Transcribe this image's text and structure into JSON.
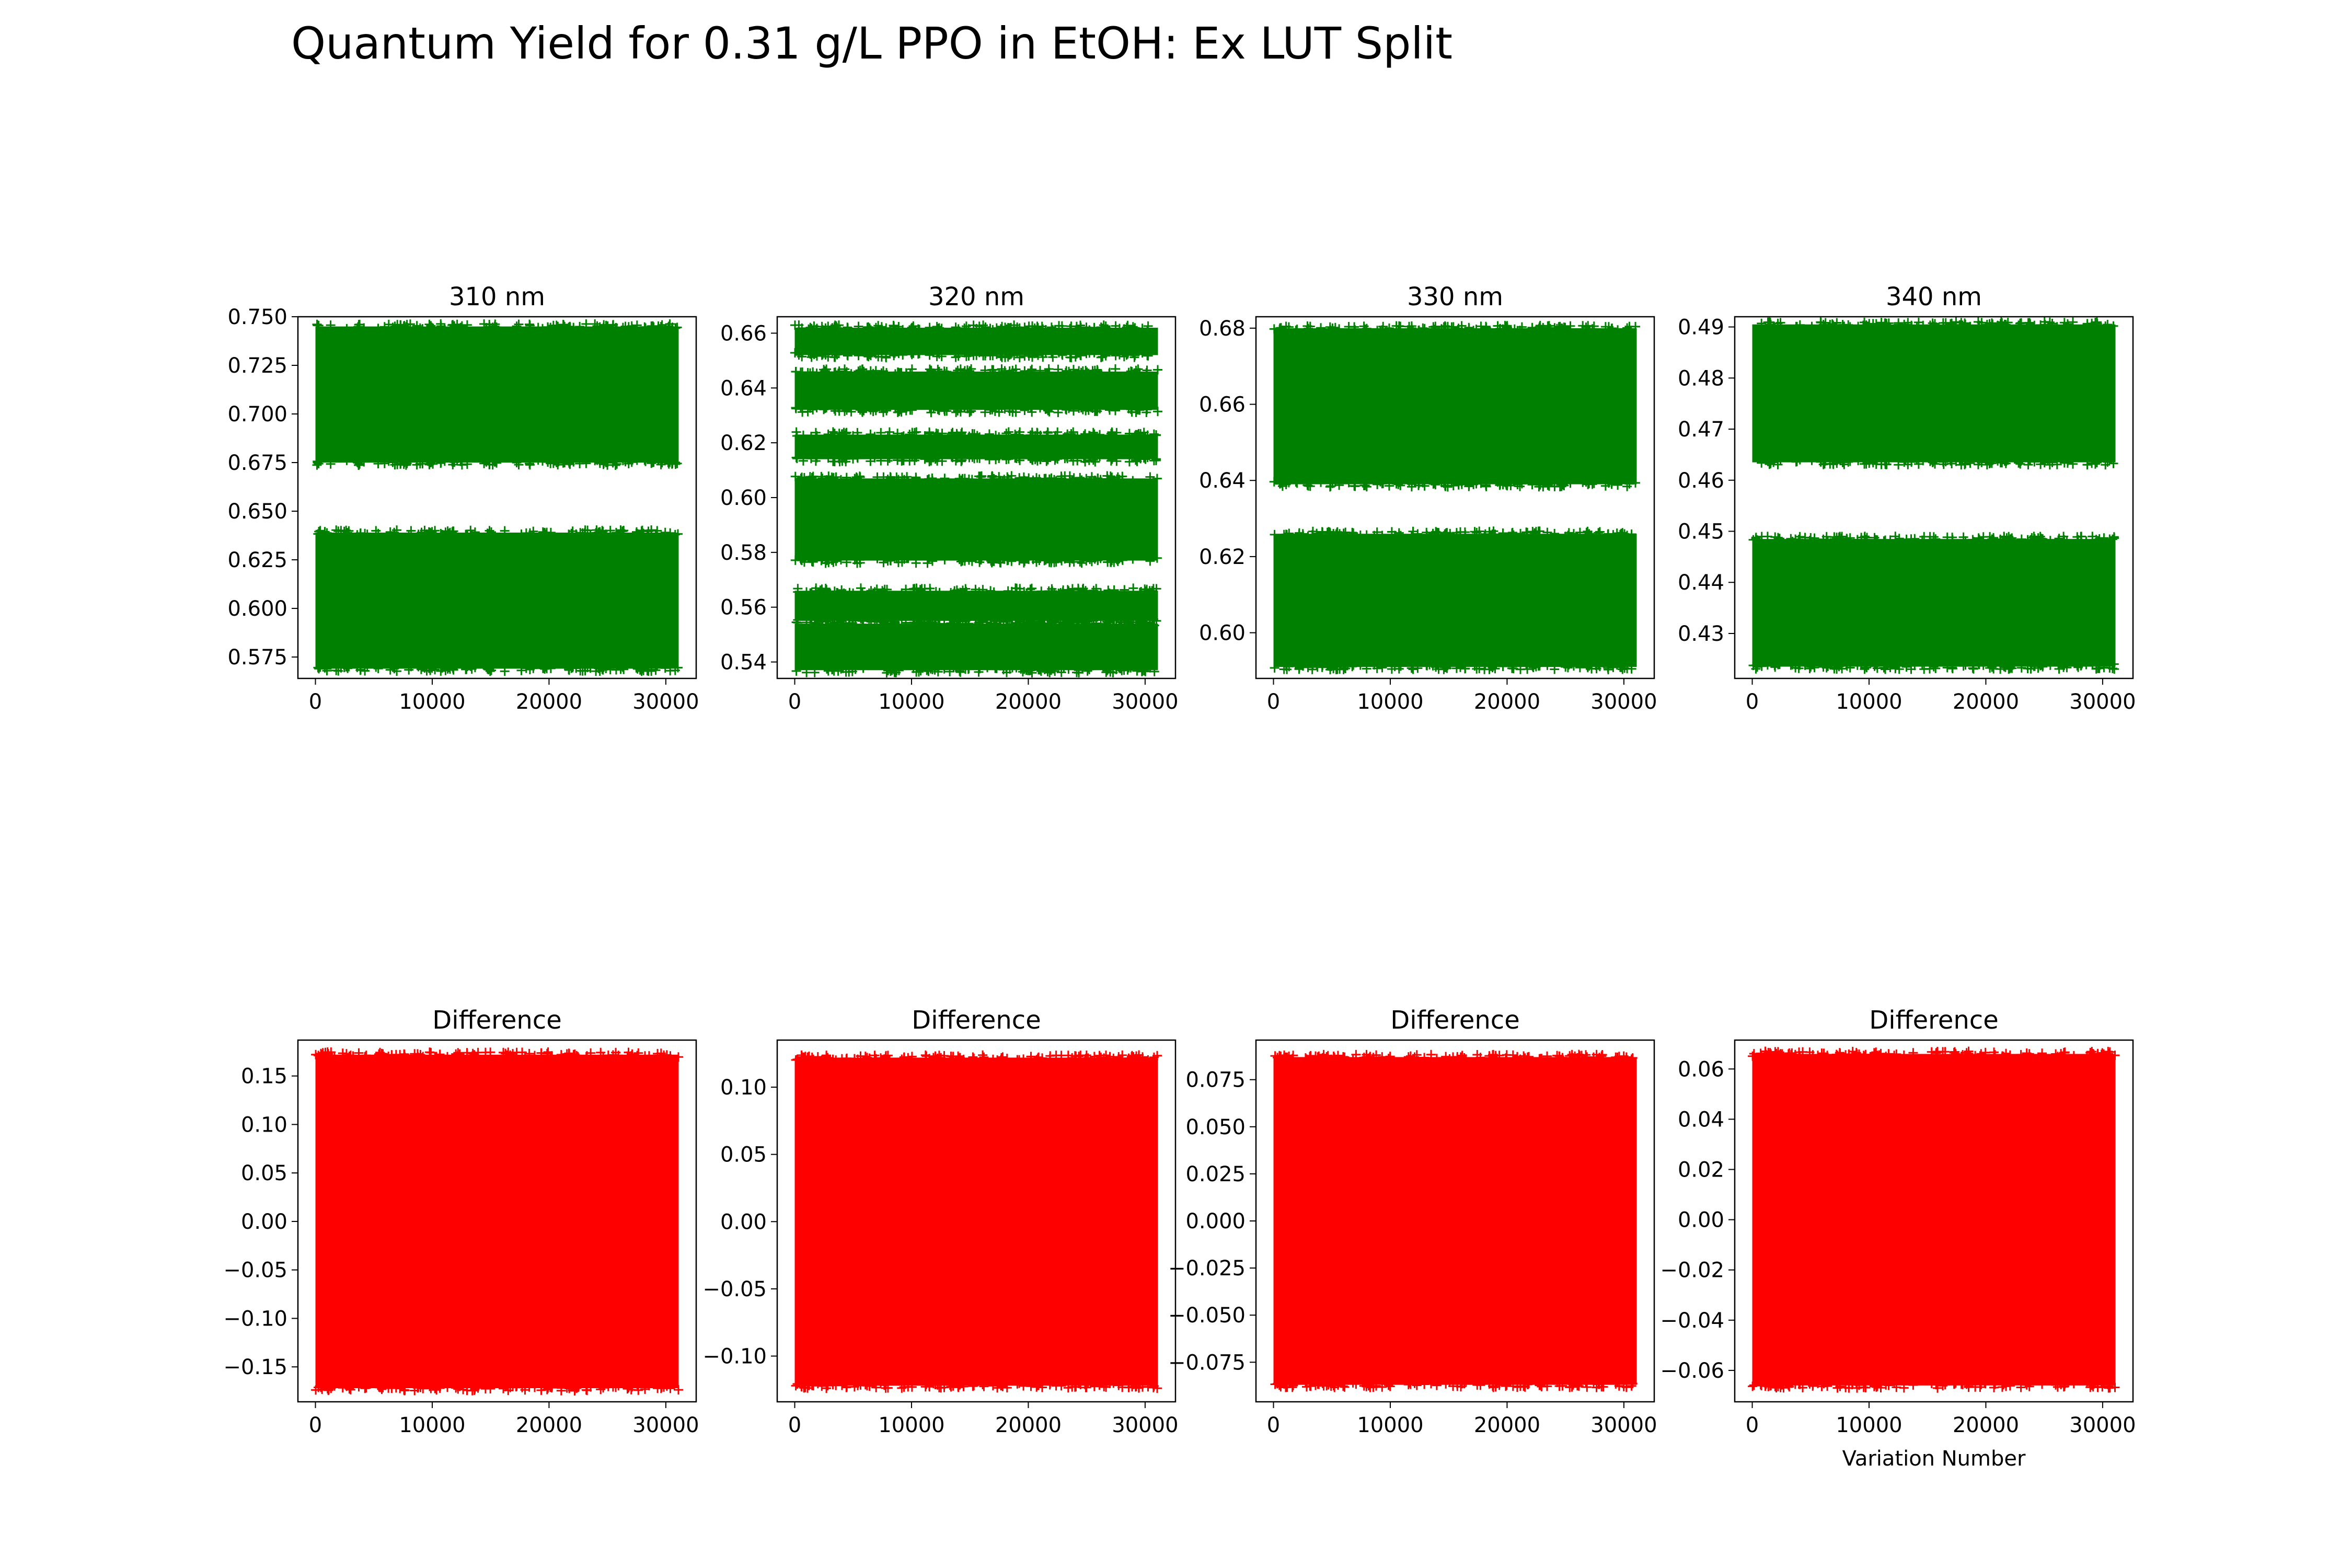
{
  "figure": {
    "title": "Quantum Yield for 0.31 g/L PPO in EtOH: Ex LUT Split"
  },
  "style": {
    "top_color": "#008000",
    "bottom_color": "#ff0000",
    "marker": "plus"
  },
  "chart_data": [
    {
      "type": "scatter",
      "row": 0,
      "col": 0,
      "title": "310 nm",
      "xlabel": "",
      "ylabel": "",
      "xlim": [
        -1500,
        32600
      ],
      "ylim": [
        0.564,
        0.75
      ],
      "xticks": [
        0,
        10000,
        20000,
        30000
      ],
      "yticks": [
        0.575,
        0.6,
        0.625,
        0.65,
        0.675,
        0.7,
        0.725,
        0.75
      ],
      "ytick_labels": [
        "0.575",
        "0.600",
        "0.625",
        "0.650",
        "0.675",
        "0.700",
        "0.725",
        "0.750"
      ],
      "series": [
        {
          "x_range": [
            0,
            31100
          ],
          "bands": [
            [
              0.675,
              0.745
            ],
            [
              0.569,
              0.639
            ]
          ]
        }
      ]
    },
    {
      "type": "scatter",
      "row": 0,
      "col": 1,
      "title": "320 nm",
      "xlabel": "",
      "ylabel": "",
      "xlim": [
        -1500,
        32600
      ],
      "ylim": [
        0.534,
        0.666
      ],
      "xticks": [
        0,
        10000,
        20000,
        30000
      ],
      "yticks": [
        0.54,
        0.56,
        0.58,
        0.6,
        0.62,
        0.64,
        0.66
      ],
      "ytick_labels": [
        "0.54",
        "0.56",
        "0.58",
        "0.60",
        "0.62",
        "0.64",
        "0.66"
      ],
      "series": [
        {
          "x_range": [
            0,
            31100
          ],
          "bands": [
            [
              0.652,
              0.662
            ],
            [
              0.632,
              0.646
            ],
            [
              0.614,
              0.623
            ],
            [
              0.577,
              0.607
            ],
            [
              0.555,
              0.566
            ],
            [
              0.537,
              0.554
            ]
          ]
        }
      ]
    },
    {
      "type": "scatter",
      "row": 0,
      "col": 2,
      "title": "330 nm",
      "xlabel": "",
      "ylabel": "",
      "xlim": [
        -1500,
        32600
      ],
      "ylim": [
        0.588,
        0.683
      ],
      "xticks": [
        0,
        10000,
        20000,
        30000
      ],
      "yticks": [
        0.6,
        0.62,
        0.64,
        0.66,
        0.68
      ],
      "ytick_labels": [
        "0.60",
        "0.62",
        "0.64",
        "0.66",
        "0.68"
      ],
      "series": [
        {
          "x_range": [
            0,
            31100
          ],
          "bands": [
            [
              0.639,
              0.68
            ],
            [
              0.591,
              0.626
            ]
          ]
        }
      ]
    },
    {
      "type": "scatter",
      "row": 0,
      "col": 3,
      "title": "340 nm",
      "xlabel": "",
      "ylabel": "",
      "xlim": [
        -1500,
        32600
      ],
      "ylim": [
        0.4212,
        0.492
      ],
      "xticks": [
        0,
        10000,
        20000,
        30000
      ],
      "yticks": [
        0.43,
        0.44,
        0.45,
        0.46,
        0.47,
        0.48,
        0.49
      ],
      "ytick_labels": [
        "0.43",
        "0.44",
        "0.45",
        "0.46",
        "0.47",
        "0.48",
        "0.49"
      ],
      "series": [
        {
          "x_range": [
            0,
            31100
          ],
          "bands": [
            [
              0.4635,
              0.4905
            ],
            [
              0.4235,
              0.4485
            ]
          ]
        }
      ]
    },
    {
      "type": "scatter",
      "row": 1,
      "col": 0,
      "title": "Difference",
      "xlabel": "",
      "ylabel": "",
      "xlim": [
        -1500,
        32600
      ],
      "ylim": [
        -0.186,
        0.187
      ],
      "xticks": [
        0,
        10000,
        20000,
        30000
      ],
      "yticks": [
        -0.15,
        -0.1,
        -0.05,
        0.0,
        0.05,
        0.1,
        0.15
      ],
      "ytick_labels": [
        "−0.15",
        "−0.10",
        "−0.05",
        "0.00",
        "0.05",
        "0.10",
        "0.15"
      ],
      "series": [
        {
          "x_range": [
            0,
            31100
          ],
          "bands": [
            [
              -0.172,
              0.172
            ]
          ]
        }
      ]
    },
    {
      "type": "scatter",
      "row": 1,
      "col": 1,
      "title": "Difference",
      "xlabel": "",
      "ylabel": "",
      "xlim": [
        -1500,
        32600
      ],
      "ylim": [
        -0.134,
        0.135
      ],
      "xticks": [
        0,
        10000,
        20000,
        30000
      ],
      "yticks": [
        -0.1,
        -0.05,
        0.0,
        0.05,
        0.1
      ],
      "ytick_labels": [
        "−0.10",
        "−0.05",
        "0.00",
        "0.05",
        "0.10"
      ],
      "series": [
        {
          "x_range": [
            0,
            31100
          ],
          "bands": [
            [
              -0.122,
              0.122
            ]
          ]
        }
      ]
    },
    {
      "type": "scatter",
      "row": 1,
      "col": 2,
      "title": "Difference",
      "xlabel": "",
      "ylabel": "",
      "xlim": [
        -1500,
        32600
      ],
      "ylim": [
        -0.096,
        0.096
      ],
      "xticks": [
        0,
        10000,
        20000,
        30000
      ],
      "yticks": [
        -0.075,
        -0.05,
        -0.025,
        0.0,
        0.025,
        0.05,
        0.075
      ],
      "ytick_labels": [
        "−0.075",
        "−0.050",
        "−0.025",
        "0.000",
        "0.025",
        "0.050",
        "0.075"
      ],
      "series": [
        {
          "x_range": [
            0,
            31100
          ],
          "bands": [
            [
              -0.087,
              0.087
            ]
          ]
        }
      ]
    },
    {
      "type": "scatter",
      "row": 1,
      "col": 3,
      "title": "Difference",
      "xlabel": "Variation Number",
      "ylabel": "",
      "xlim": [
        -1500,
        32600
      ],
      "ylim": [
        -0.0725,
        0.0715
      ],
      "xticks": [
        0,
        10000,
        20000,
        30000
      ],
      "yticks": [
        -0.06,
        -0.04,
        -0.02,
        0.0,
        0.02,
        0.04,
        0.06
      ],
      "ytick_labels": [
        "−0.06",
        "−0.04",
        "−0.02",
        "0.00",
        "0.02",
        "0.04",
        "0.06"
      ],
      "series": [
        {
          "x_range": [
            0,
            31100
          ],
          "bands": [
            [
              -0.066,
              0.066
            ]
          ]
        }
      ]
    }
  ]
}
